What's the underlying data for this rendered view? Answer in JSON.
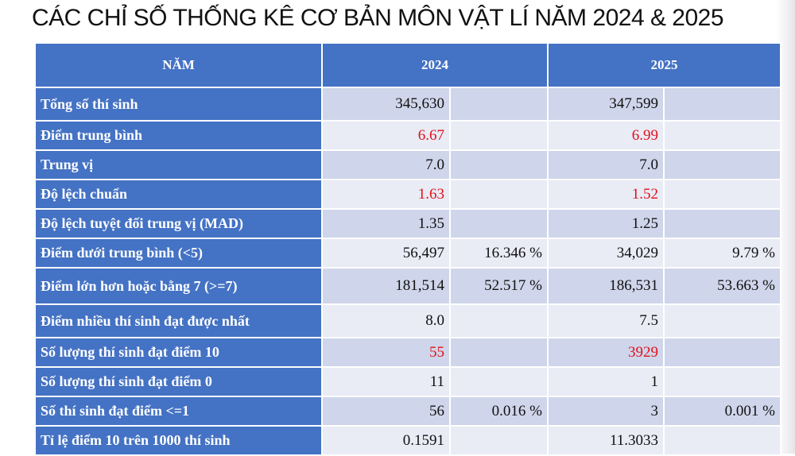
{
  "title": "CÁC CHỈ SỐ THỐNG KÊ CƠ BẢN MÔN VẬT LÍ NĂM 2024 & 2025",
  "header": {
    "label": "NĂM",
    "year_a": "2024",
    "year_b": "2025"
  },
  "highlight_color": "#e0111a",
  "header_color": "#4472c4",
  "rows": [
    {
      "label": "Tổng số thí sinh",
      "a": "345,630",
      "a_pct": "",
      "b": "347,599",
      "b_pct": "",
      "red": false
    },
    {
      "label": "Điểm trung bình",
      "a": "6.67",
      "a_pct": "",
      "b": "6.99",
      "b_pct": "",
      "red": true
    },
    {
      "label": "Trung vị",
      "a": "7.0",
      "a_pct": "",
      "b": "7.0",
      "b_pct": "",
      "red": false
    },
    {
      "label": "Độ lệch chuẩn",
      "a": "1.63",
      "a_pct": "",
      "b": "1.52",
      "b_pct": "",
      "red": true
    },
    {
      "label": "Độ lệch tuyệt đối trung vị (MAD)",
      "a": "1.35",
      "a_pct": "",
      "b": "1.25",
      "b_pct": "",
      "red": false
    },
    {
      "label": "Điểm dưới trung bình (<5)",
      "a": "56,497",
      "a_pct": "16.346 %",
      "b": "34,029",
      "b_pct": "9.79 %",
      "red": false
    },
    {
      "label": "Điểm lớn hơn hoặc bằng 7 (>=7)",
      "a": "181,514",
      "a_pct": "52.517 %",
      "b": "186,531",
      "b_pct": "53.663 %",
      "red": false
    },
    {
      "label": "Điểm nhiều thí sinh đạt được nhất",
      "a": "8.0",
      "a_pct": "",
      "b": "7.5",
      "b_pct": "",
      "red": false
    },
    {
      "label": "Số lượng thí sinh đạt điểm 10",
      "a": "55",
      "a_pct": "",
      "b": "3929",
      "b_pct": "",
      "red": true
    },
    {
      "label": "Số lượng thí sinh đạt điểm 0",
      "a": "11",
      "a_pct": "",
      "b": "1",
      "b_pct": "",
      "red": false
    },
    {
      "label": "Số thí sinh đạt điểm <=1",
      "a": "56",
      "a_pct": "0.016 %",
      "b": "3",
      "b_pct": "0.001 %",
      "red": false
    },
    {
      "label": "Tỉ lệ điểm 10 trên 1000 thí sinh",
      "a": "0.1591",
      "a_pct": "",
      "b": "11.3033",
      "b_pct": "",
      "red": false
    }
  ]
}
